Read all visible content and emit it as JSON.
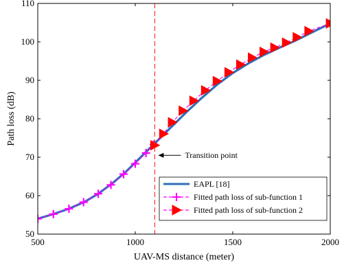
{
  "chart_data": {
    "type": "line",
    "xlabel": "UAV-MS distance (meter)",
    "ylabel": "Path loss (dB)",
    "xlim": [
      500,
      2000
    ],
    "ylim": [
      50,
      110
    ],
    "xticks": [
      500,
      1000,
      1500,
      2000
    ],
    "yticks": [
      50,
      60,
      70,
      80,
      90,
      100,
      110
    ],
    "grid": false,
    "legend_position": "bottom-right",
    "series": [
      {
        "name": "EAPL [18]",
        "color": "#2e6fb7",
        "style": "solid-thick",
        "x": [
          500,
          580,
          660,
          740,
          810,
          880,
          950,
          1020,
          1100,
          1180,
          1260,
          1340,
          1420,
          1500,
          1580,
          1660,
          1740,
          1820,
          1900,
          2000
        ],
        "values": [
          54.0,
          55.2,
          56.6,
          58.4,
          60.5,
          63.1,
          66.1,
          69.6,
          73.6,
          77.6,
          81.6,
          85.4,
          88.9,
          91.9,
          94.4,
          96.6,
          98.5,
          100.3,
          102.3,
          104.8
        ]
      },
      {
        "name": "Fitted path loss of sub-function 1",
        "color": "#ff00ff",
        "style": "dashed-plus",
        "x": [
          500,
          580,
          660,
          735,
          810,
          875,
          940,
          1000,
          1055,
          1095
        ],
        "values": [
          54.0,
          55.2,
          56.6,
          58.3,
          60.5,
          62.8,
          65.6,
          68.3,
          71.1,
          73.3
        ]
      },
      {
        "name": "Fitted path loss of sub-function 2",
        "color": "#ff0000",
        "style": "dashed-triangle",
        "x": [
          1100,
          1145,
          1190,
          1245,
          1300,
          1360,
          1420,
          1480,
          1540,
          1600,
          1660,
          1715,
          1775,
          1830,
          1890,
          2000
        ],
        "values": [
          73.1,
          76.1,
          79.1,
          82.1,
          84.7,
          87.4,
          89.8,
          92.1,
          94.1,
          95.9,
          97.4,
          98.5,
          99.8,
          101.2,
          102.8,
          104.8
        ]
      }
    ],
    "transition": {
      "x": 1100,
      "color": "#ff3333"
    },
    "annotation": {
      "text": "Transition point",
      "y": 70.5
    }
  }
}
